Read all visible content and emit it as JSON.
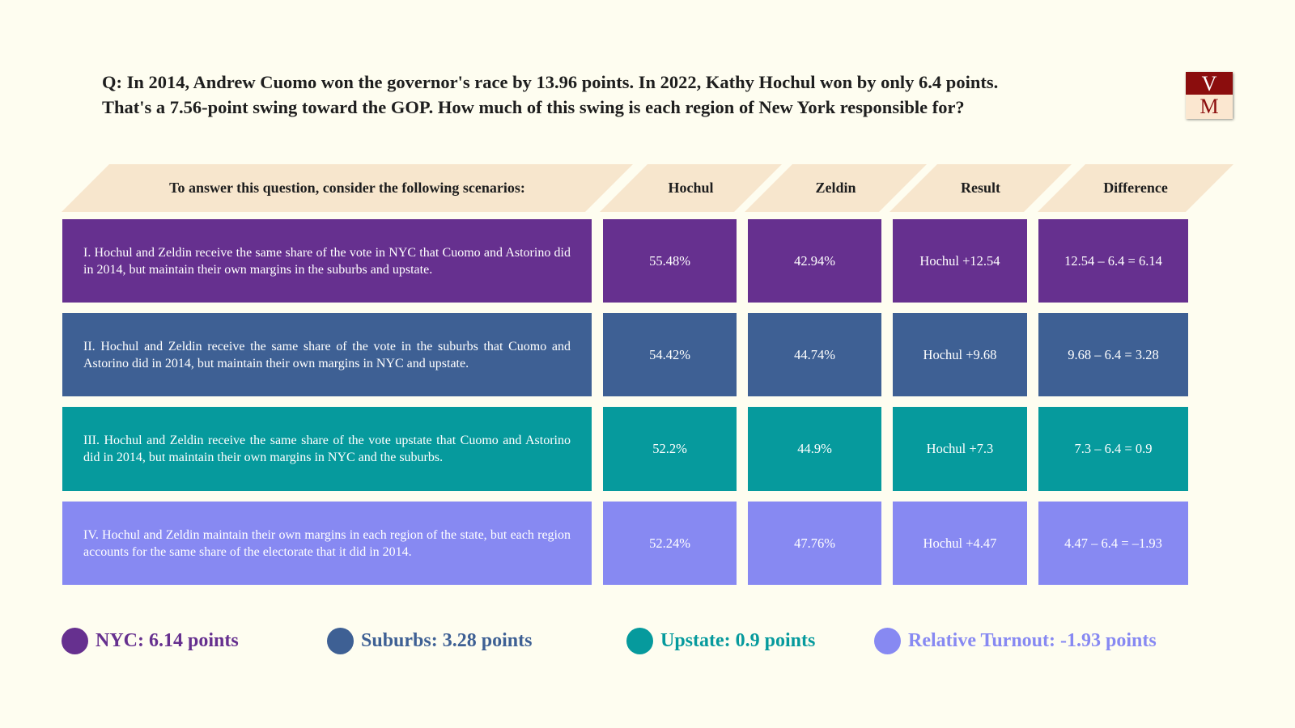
{
  "question": {
    "line1": "Q: In 2014, Andrew Cuomo won the governor's race by 13.96 points. In 2022, Kathy Hochul won by only 6.4 points.",
    "line2": "That's a 7.56-point swing toward the GOP. How much of this swing is each region of New York responsible for?"
  },
  "logo": {
    "top": "V",
    "bottom": "M"
  },
  "headers": {
    "scenarios": "To answer this question, consider the following scenarios:",
    "hochul": "Hochul",
    "zeldin": "Zeldin",
    "result": "Result",
    "difference": "Difference"
  },
  "rows": [
    {
      "description": "I. Hochul and Zeldin receive the same share of the vote in NYC that Cuomo and Astorino did in 2014, but maintain their own margins in the suburbs and upstate.",
      "hochul": "55.48%",
      "zeldin": "42.94%",
      "result": "Hochul +12.54",
      "difference": "12.54 – 6.4 = 6.14",
      "color": "#66308f"
    },
    {
      "description": "II. Hochul and Zeldin receive the same share of the vote in the suburbs that Cuomo and Astorino did in 2014, but maintain their own margins in NYC and upstate.",
      "hochul": "54.42%",
      "zeldin": "44.74%",
      "result": "Hochul +9.68",
      "difference": "9.68 – 6.4 = 3.28",
      "color": "#3e6094"
    },
    {
      "description": "III. Hochul and Zeldin receive the same share of the vote upstate that Cuomo and Astorino did in 2014, but maintain their own margins in NYC and the suburbs.",
      "hochul": "52.2%",
      "zeldin": "44.9%",
      "result": "Hochul +7.3",
      "difference": "7.3 – 6.4 = 0.9",
      "color": "#069a9d"
    },
    {
      "description": "IV. Hochul and Zeldin maintain their own margins in each region of the state, but each region accounts for the same share of the electorate that it did in 2014.",
      "hochul": "52.24%",
      "zeldin": "47.76%",
      "result": "Hochul +4.47",
      "difference": "4.47 – 6.4 = –1.93",
      "color": "#8789f2"
    }
  ],
  "legend": [
    {
      "label": "NYC: 6.14 points",
      "color": "#66308f"
    },
    {
      "label": "Suburbs: 3.28 points",
      "color": "#3e6094"
    },
    {
      "label": "Upstate: 0.9 points",
      "color": "#069a9d"
    },
    {
      "label": "Relative Turnout: -1.93 points",
      "color": "#8789f2"
    }
  ],
  "colors": {
    "background": "#fefdf0",
    "header_fill": "#f7e6cd"
  }
}
